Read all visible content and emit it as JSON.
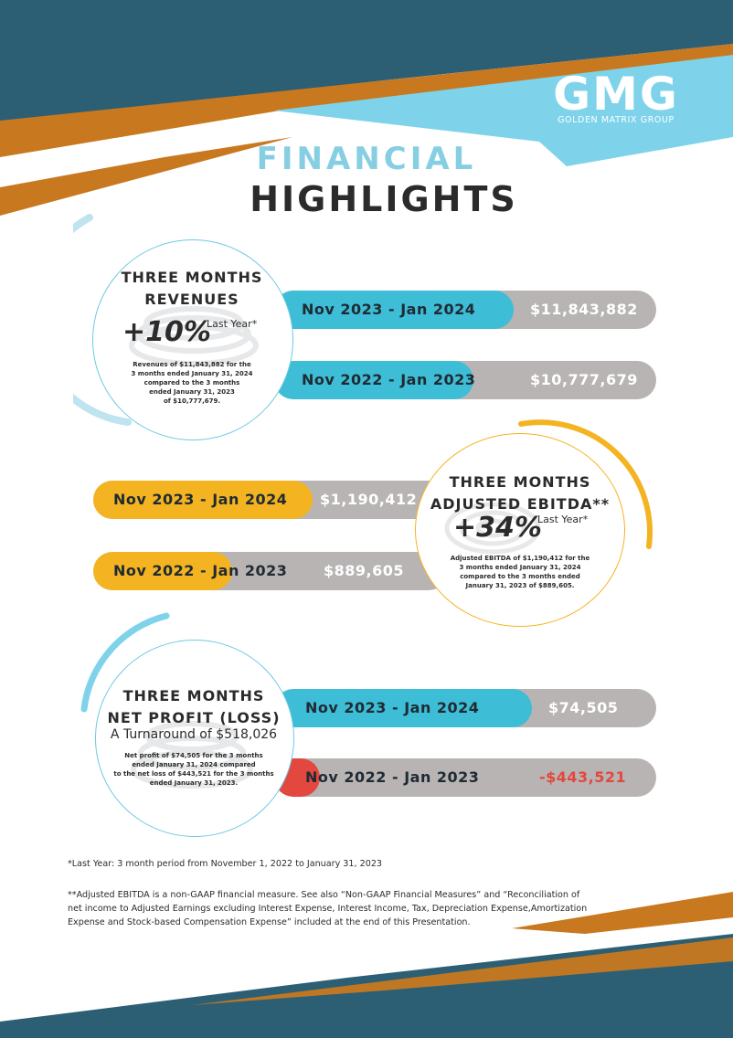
{
  "brand": {
    "logo_mark": "GMG",
    "logo_subtitle": "GOLDEN MATRIX GROUP",
    "colors": {
      "navy": "#2c5f74",
      "orange": "#c8781f",
      "sky": "#7ed3ea",
      "teal": "#3dbdd6",
      "amber": "#f4b422",
      "gray": "#b8b4b4",
      "red": "#e2483d"
    }
  },
  "title": {
    "line1": "FINANCIAL",
    "line2": "HIGHLIGHTS"
  },
  "revenues": {
    "title_line1": "THREE MONTHS",
    "title_line2": "REVENUES",
    "change": "+10%",
    "change_label": "Last Year*",
    "description": [
      "Revenues of $11,843,882 for the",
      "3 months ended January 31, 2024",
      "compared to the 3 months",
      "ended January 31, 2023",
      "of $10,777,679."
    ],
    "rows": [
      {
        "period": "Nov 2023 - Jan 2024",
        "amount": "$11,843,882"
      },
      {
        "period": "Nov 2022 - Jan 2023",
        "amount": "$10,777,679"
      }
    ]
  },
  "ebitda": {
    "title_line1": "THREE MONTHS",
    "title_line2": "ADJUSTED EBITDA**",
    "change": "+34%",
    "change_label": "Last Year*",
    "description": [
      "Adjusted EBITDA of $1,190,412 for the",
      "3 months ended January 31, 2024",
      "compared to the 3 months ended",
      "January 31, 2023 of $889,605."
    ],
    "rows": [
      {
        "period": "Nov 2023 - Jan 2024",
        "amount": "$1,190,412"
      },
      {
        "period": "Nov 2022 - Jan 2023",
        "amount": "$889,605"
      }
    ]
  },
  "net_profit": {
    "title_line1": "THREE MONTHS",
    "title_line2": "NET PROFIT (LOSS)",
    "turnaround": "A Turnaround of $518,026",
    "description": [
      "Net profit of $74,505 for the 3 months",
      "ended January 31, 2024 compared",
      "to the net loss of $443,521 for the 3 months",
      "ended January 31, 2023."
    ],
    "rows": [
      {
        "period": "Nov 2023 - Jan 2024",
        "amount": "$74,505"
      },
      {
        "period": "Nov 2022 - Jan 2023",
        "amount": "-$443,521"
      }
    ]
  },
  "footnotes": {
    "last_year": "*Last Year: 3 month period from November 1, 2022 to January 31, 2023",
    "ebitda": [
      "**Adjusted EBITDA is a non-GAAP financial measure. See also “Non-GAAP Financial Measures” and “Reconciliation of",
      "net income to Adjusted Earnings excluding Interest Expense, Interest Income, Tax, Depreciation Expense,Amortization",
      "Expense and Stock-based Compensation Expense” included at the end of this Presentation."
    ]
  }
}
